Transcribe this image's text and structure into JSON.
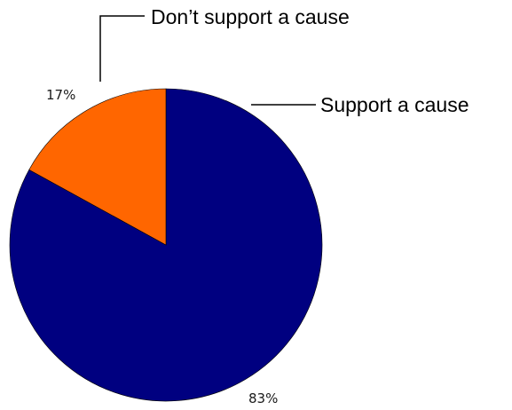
{
  "chart_data": {
    "type": "pie",
    "slices": [
      {
        "label": "Support a cause",
        "value": 83,
        "value_label": "83%",
        "color": "#000080"
      },
      {
        "label": "Don’t support a cause",
        "value": 17,
        "value_label": "17%",
        "color": "#ff6600"
      }
    ],
    "start": "12 o'clock",
    "direction": "clockwise",
    "title": "",
    "legend": "none (callout labels)"
  }
}
